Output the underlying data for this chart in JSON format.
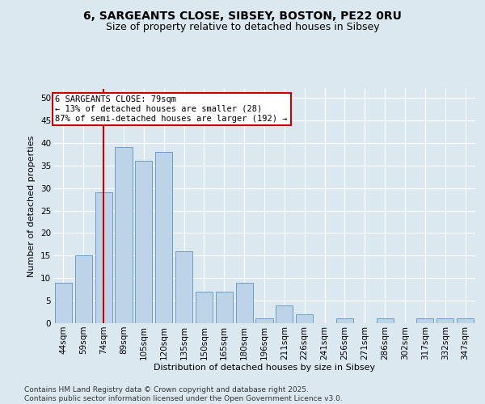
{
  "title1": "6, SARGEANTS CLOSE, SIBSEY, BOSTON, PE22 0RU",
  "title2": "Size of property relative to detached houses in Sibsey",
  "xlabel": "Distribution of detached houses by size in Sibsey",
  "ylabel": "Number of detached properties",
  "categories": [
    "44sqm",
    "59sqm",
    "74sqm",
    "89sqm",
    "105sqm",
    "120sqm",
    "135sqm",
    "150sqm",
    "165sqm",
    "180sqm",
    "196sqm",
    "211sqm",
    "226sqm",
    "241sqm",
    "256sqm",
    "271sqm",
    "286sqm",
    "302sqm",
    "317sqm",
    "332sqm",
    "347sqm"
  ],
  "values": [
    9,
    15,
    29,
    39,
    36,
    38,
    16,
    7,
    7,
    9,
    1,
    4,
    2,
    0,
    1,
    0,
    1,
    0,
    1,
    1,
    1
  ],
  "bar_color": "#bdd4e8",
  "bar_edge_color": "#6b9ec8",
  "vline_x": 2.0,
  "vline_color": "#cc0000",
  "annotation_text": "6 SARGEANTS CLOSE: 79sqm\n← 13% of detached houses are smaller (28)\n87% of semi-detached houses are larger (192) →",
  "annotation_box_color": "#ffffff",
  "annotation_box_edge_color": "#cc0000",
  "ylim": [
    0,
    52
  ],
  "yticks": [
    0,
    5,
    10,
    15,
    20,
    25,
    30,
    35,
    40,
    45,
    50
  ],
  "bg_color": "#dce8f0",
  "plot_bg_color": "#dce8f0",
  "footer": "Contains HM Land Registry data © Crown copyright and database right 2025.\nContains public sector information licensed under the Open Government Licence v3.0.",
  "title_fontsize": 10,
  "subtitle_fontsize": 9,
  "axis_label_fontsize": 8,
  "tick_fontsize": 7.5,
  "footer_fontsize": 6.5,
  "annotation_fontsize": 7.5
}
